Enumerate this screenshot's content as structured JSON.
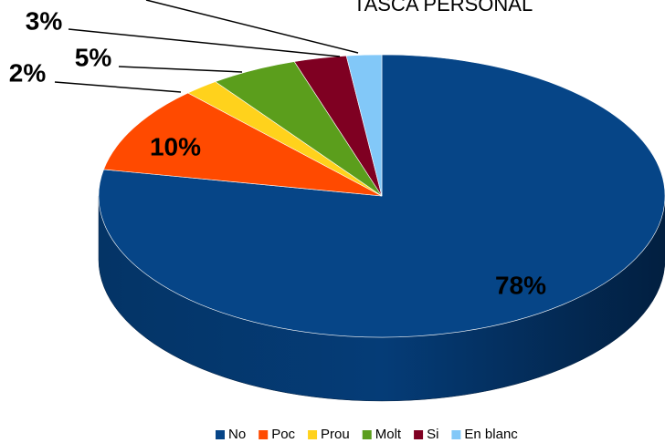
{
  "chart_data": {
    "type": "pie3d",
    "title": "TASCA PERSONAL",
    "categories": [
      "No",
      "Poc",
      "Prou",
      "Molt",
      "Si",
      "En blanc"
    ],
    "values": [
      78,
      10,
      2,
      5,
      3,
      2
    ],
    "value_labels": [
      "78%",
      "10%",
      "2%",
      "5%",
      "3%",
      null
    ],
    "colors": [
      "#064587",
      "#ff4a00",
      "#ffd21c",
      "#5b9e1c",
      "#7f0022",
      "#82c8f8"
    ],
    "legend": "bottom"
  }
}
